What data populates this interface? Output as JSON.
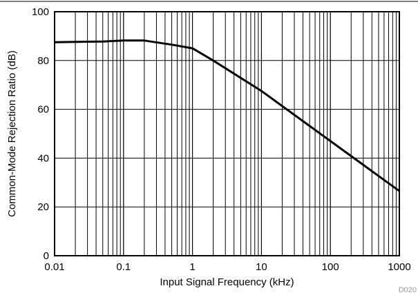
{
  "chart_data": {
    "type": "line",
    "title": "",
    "xlabel": "Input Signal Frequency (kHz)",
    "ylabel": "Common-Mode Rejection Ratio (dB)",
    "xscale": "log",
    "xlim": [
      0.01,
      1000
    ],
    "ylim": [
      0,
      100
    ],
    "grid": true,
    "x_ticks": [
      {
        "value": 0.01,
        "label": "0.01"
      },
      {
        "value": 0.1,
        "label": "0.1"
      },
      {
        "value": 1,
        "label": "1"
      },
      {
        "value": 10,
        "label": "10"
      },
      {
        "value": 100,
        "label": "100"
      },
      {
        "value": 1000,
        "label": "1000"
      }
    ],
    "y_ticks": [
      {
        "value": 0,
        "label": "0"
      },
      {
        "value": 20,
        "label": "20"
      },
      {
        "value": 40,
        "label": "40"
      },
      {
        "value": 60,
        "label": "60"
      },
      {
        "value": 80,
        "label": "80"
      },
      {
        "value": 100,
        "label": "100"
      }
    ],
    "series": [
      {
        "color": "#000000",
        "x": [
          0.01,
          0.05,
          0.1,
          0.2,
          0.5,
          1,
          2,
          10,
          100,
          1000
        ],
        "y": [
          87.5,
          87.8,
          88.2,
          88.2,
          86.5,
          85,
          80,
          67.5,
          47,
          26.5
        ]
      }
    ],
    "footnote": "D020"
  }
}
